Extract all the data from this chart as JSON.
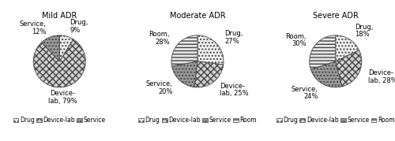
{
  "charts": [
    {
      "title": "Mild ADR",
      "labels": [
        "Drug",
        "Device-lab",
        "Service"
      ],
      "values": [
        9,
        79,
        12
      ],
      "legend_labels": [
        "Drug",
        "Device-lab",
        "Service"
      ]
    },
    {
      "title": "Moderate ADR",
      "labels": [
        "Drug",
        "Device-lab",
        "Service",
        "Room"
      ],
      "values": [
        27,
        25,
        20,
        28
      ],
      "legend_labels": [
        "Drug",
        "Device-lab",
        "Service",
        "Room"
      ]
    },
    {
      "title": "Severe ADR",
      "labels": [
        "Drug",
        "Device-lab",
        "Service",
        "Room"
      ],
      "values": [
        18,
        28,
        24,
        30
      ],
      "legend_labels": [
        "Drug",
        "Device-lab",
        "Service",
        "Room"
      ]
    }
  ],
  "category_styles": {
    "Drug": {
      "hatch": "....",
      "facecolor": "#f0f0f0"
    },
    "Device-lab": {
      "hatch": "xxxx",
      "facecolor": "#d0d0d0"
    },
    "Service": {
      "hatch": "....",
      "facecolor": "#999999"
    },
    "Room": {
      "hatch": "----",
      "facecolor": "#e8e8e8"
    }
  },
  "title_fontsize": 7.0,
  "label_fontsize": 6.0,
  "legend_fontsize": 5.5,
  "edge_color": "#444444"
}
